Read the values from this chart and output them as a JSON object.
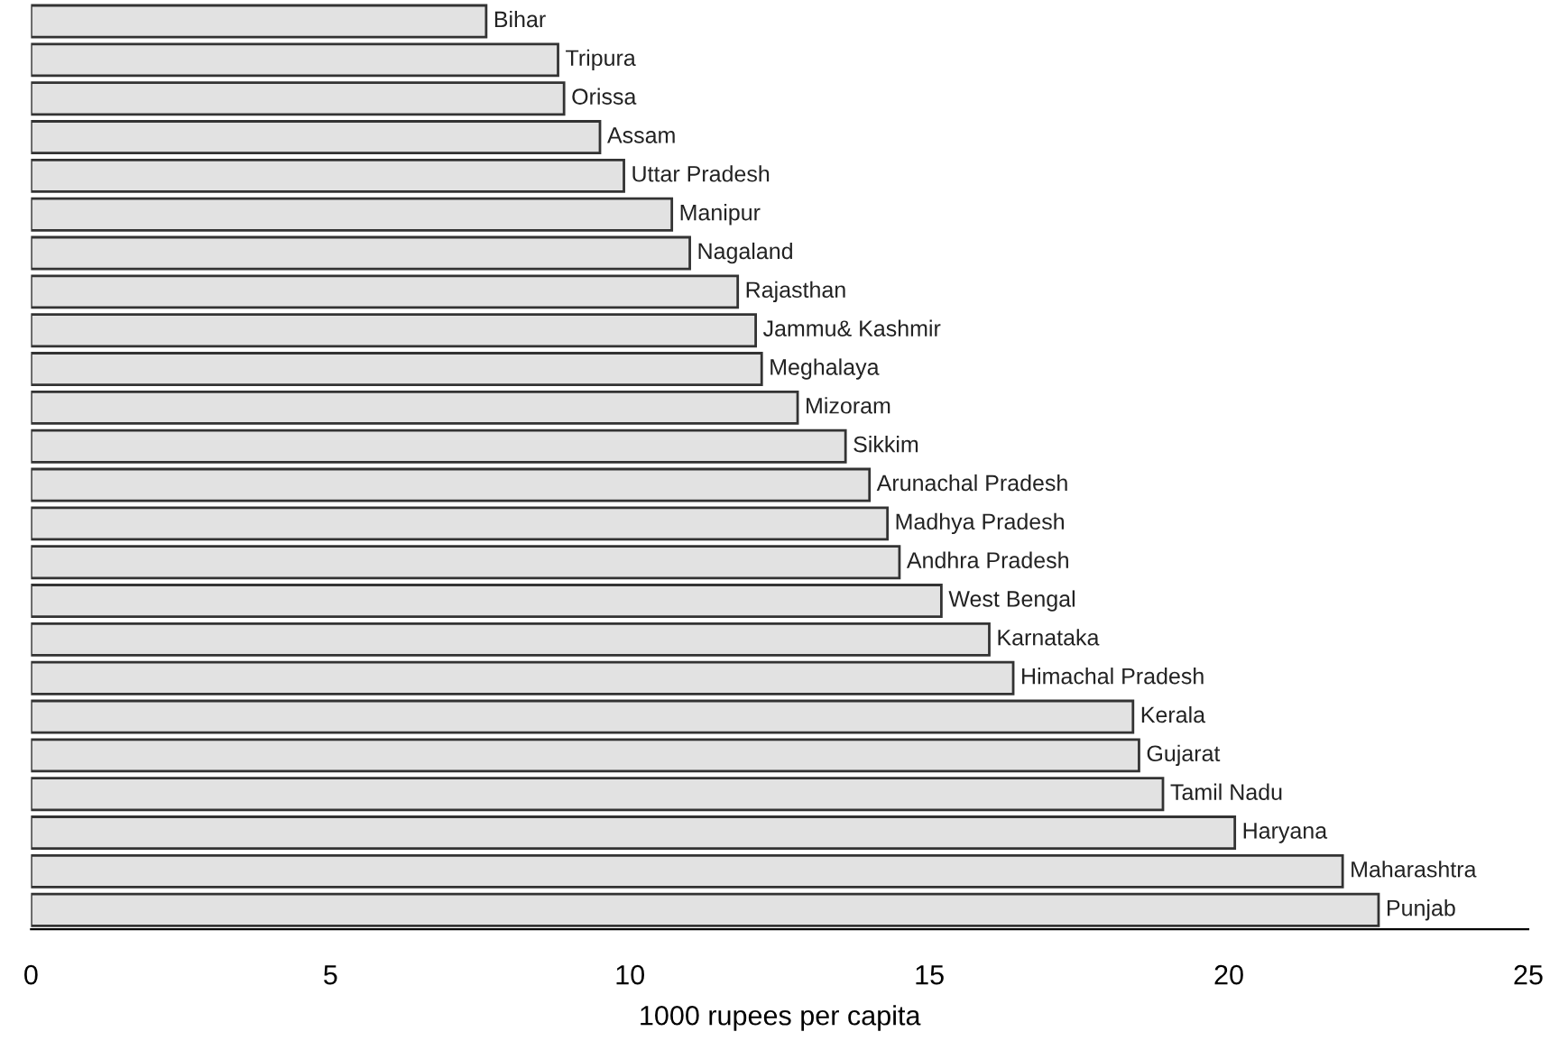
{
  "chart_data": {
    "type": "bar",
    "orientation": "horizontal",
    "xlabel": "1000 rupees per capita",
    "categories": [
      "Bihar",
      "Tripura",
      "Orissa",
      "Assam",
      "Uttar Pradesh",
      "Manipur",
      "Nagaland",
      "Rajasthan",
      "Jammu& Kashmir",
      "Meghalaya",
      "Mizoram",
      "Sikkim",
      "Arunachal Pradesh",
      "Madhya Pradesh",
      "Andhra Pradesh",
      "West Bengal",
      "Karnataka",
      "Himachal Pradesh",
      "Kerala",
      "Gujarat",
      "Tamil Nadu",
      "Haryana",
      "Maharashtra",
      "Punjab"
    ],
    "values": [
      7.6,
      8.8,
      8.9,
      9.5,
      9.9,
      10.7,
      11.0,
      11.8,
      12.1,
      12.2,
      12.8,
      13.6,
      14.0,
      14.3,
      14.5,
      15.2,
      16.0,
      16.4,
      18.4,
      18.5,
      18.9,
      20.1,
      21.9,
      22.5
    ],
    "color": "#e2e2e2",
    "xlim": [
      0,
      25
    ],
    "xticks": [
      0,
      5,
      10,
      15,
      20,
      25
    ],
    "grid": false,
    "tick_labels": "x"
  }
}
